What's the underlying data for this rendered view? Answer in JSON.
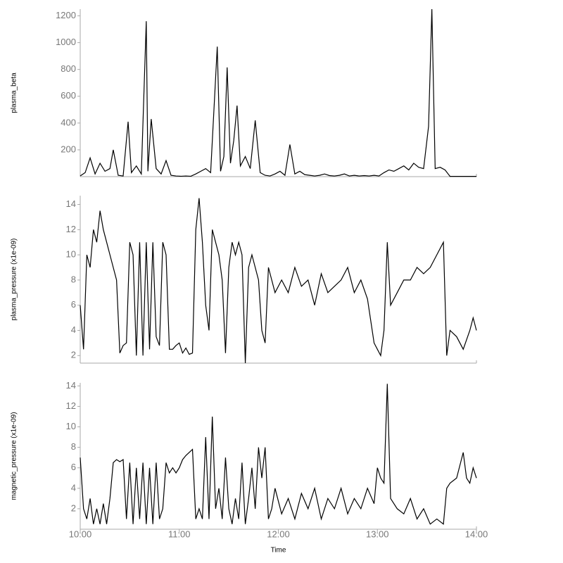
{
  "chart_data": [
    {
      "type": "line",
      "ylabel": "plasma_beta",
      "color": "#000000",
      "x": [
        "10:00",
        "10:03",
        "10:06",
        "10:09",
        "10:12",
        "10:15",
        "10:18",
        "10:20",
        "10:23",
        "10:26",
        "10:29",
        "10:31",
        "10:34",
        "10:37",
        "10:40",
        "10:41",
        "10:43",
        "10:46",
        "10:49",
        "10:52",
        "10:55",
        "10:58",
        "11:01",
        "11:04",
        "11:07",
        "11:10",
        "11:13",
        "11:16",
        "11:19",
        "11:23",
        "11:25",
        "11:27",
        "11:29",
        "11:31",
        "11:33",
        "11:35",
        "11:37",
        "11:40",
        "11:43",
        "11:46",
        "11:49",
        "11:52",
        "11:55",
        "11:58",
        "12:01",
        "12:04",
        "12:07",
        "12:10",
        "12:13",
        "12:16",
        "12:19",
        "12:22",
        "12:25",
        "12:28",
        "12:31",
        "12:34",
        "12:37",
        "12:40",
        "12:43",
        "12:46",
        "12:49",
        "12:52",
        "12:55",
        "12:58",
        "13:01",
        "13:04",
        "13:07",
        "13:10",
        "13:13",
        "13:16",
        "13:19",
        "13:22",
        "13:25",
        "13:28",
        "13:31",
        "13:33",
        "13:35",
        "13:38",
        "13:41",
        "13:44",
        "13:50",
        "13:55",
        "14:00"
      ],
      "values": [
        5,
        30,
        140,
        20,
        100,
        40,
        60,
        200,
        10,
        5,
        410,
        30,
        80,
        20,
        1160,
        40,
        430,
        60,
        20,
        120,
        10,
        5,
        3,
        5,
        3,
        20,
        40,
        60,
        30,
        970,
        40,
        150,
        815,
        100,
        270,
        530,
        80,
        150,
        60,
        420,
        30,
        10,
        5,
        20,
        40,
        10,
        240,
        20,
        40,
        15,
        10,
        5,
        10,
        20,
        8,
        5,
        10,
        20,
        5,
        10,
        5,
        8,
        5,
        10,
        5,
        30,
        50,
        40,
        60,
        80,
        50,
        100,
        70,
        60,
        375,
        1250,
        60,
        70,
        50,
        2,
        2,
        2,
        2
      ],
      "xlim": [
        "10:00",
        "14:00"
      ],
      "ylim": [
        0,
        1250
      ],
      "yticks": [
        200,
        400,
        600,
        800,
        1000,
        1200
      ]
    },
    {
      "type": "line",
      "ylabel": "plasma_pressure (x1e-09)",
      "color": "#000000",
      "x": [
        "10:00",
        "10:02",
        "10:04",
        "10:06",
        "10:08",
        "10:10",
        "10:12",
        "10:14",
        "10:16",
        "10:18",
        "10:20",
        "10:22",
        "10:24",
        "10:26",
        "10:28",
        "10:30",
        "10:32",
        "10:34",
        "10:36",
        "10:38",
        "10:40",
        "10:42",
        "10:44",
        "10:46",
        "10:48",
        "10:50",
        "10:52",
        "10:54",
        "10:56",
        "10:58",
        "11:00",
        "11:02",
        "11:04",
        "11:06",
        "11:08",
        "11:10",
        "11:12",
        "11:14",
        "11:16",
        "11:18",
        "11:20",
        "11:22",
        "11:24",
        "11:26",
        "11:28",
        "11:30",
        "11:32",
        "11:34",
        "11:36",
        "11:38",
        "11:40",
        "11:42",
        "11:44",
        "11:46",
        "11:48",
        "11:50",
        "11:52",
        "11:54",
        "11:56",
        "11:58",
        "12:02",
        "12:06",
        "12:10",
        "12:14",
        "12:18",
        "12:22",
        "12:26",
        "12:30",
        "12:34",
        "12:38",
        "12:42",
        "12:46",
        "12:50",
        "12:54",
        "12:58",
        "13:00",
        "13:02",
        "13:04",
        "13:06",
        "13:08",
        "13:12",
        "13:16",
        "13:20",
        "13:24",
        "13:28",
        "13:32",
        "13:36",
        "13:40",
        "13:42",
        "13:44",
        "13:48",
        "13:52",
        "13:56",
        "13:58",
        "14:00"
      ],
      "values": [
        6,
        2.5,
        10,
        9,
        12,
        11,
        13.5,
        12,
        11,
        10,
        9,
        8,
        2.2,
        2.8,
        3,
        11,
        10,
        2,
        11,
        2,
        11,
        2.5,
        11,
        3.5,
        2.8,
        11,
        10,
        2.5,
        2.5,
        2.8,
        3,
        2.2,
        2.6,
        2.1,
        2.2,
        12,
        14.5,
        11,
        6,
        4,
        12,
        11,
        10,
        8,
        2.2,
        9,
        11,
        10,
        11,
        10,
        1.4,
        9,
        10,
        9,
        8,
        4,
        3,
        9,
        8,
        7,
        8,
        7,
        9,
        7.5,
        8,
        6,
        8.5,
        7,
        7.5,
        8,
        9,
        7,
        8,
        6.5,
        3,
        2.5,
        2,
        4,
        11,
        6,
        7,
        8,
        8,
        9,
        8.5,
        9,
        10,
        11,
        2,
        4,
        3.5,
        2.5,
        4,
        5,
        4
      ],
      "xlim": [
        "10:00",
        "14:00"
      ],
      "ylim": [
        1.4,
        14.7
      ],
      "yticks": [
        2,
        4,
        6,
        8,
        10,
        12,
        14
      ]
    },
    {
      "type": "line",
      "ylabel": "magnetic_pressure (x1e-09)",
      "xlabel": "Time",
      "color": "#000000",
      "x": [
        "10:00",
        "10:02",
        "10:04",
        "10:06",
        "10:08",
        "10:10",
        "10:12",
        "10:14",
        "10:16",
        "10:18",
        "10:20",
        "10:22",
        "10:24",
        "10:26",
        "10:28",
        "10:30",
        "10:32",
        "10:34",
        "10:36",
        "10:38",
        "10:40",
        "10:42",
        "10:44",
        "10:46",
        "10:48",
        "10:50",
        "10:52",
        "10:54",
        "10:56",
        "10:58",
        "11:00",
        "11:02",
        "11:04",
        "11:06",
        "11:08",
        "11:10",
        "11:12",
        "11:14",
        "11:16",
        "11:18",
        "11:20",
        "11:22",
        "11:24",
        "11:26",
        "11:28",
        "11:30",
        "11:32",
        "11:34",
        "11:36",
        "11:38",
        "11:40",
        "11:42",
        "11:44",
        "11:46",
        "11:48",
        "11:50",
        "11:52",
        "11:54",
        "11:56",
        "11:58",
        "12:02",
        "12:06",
        "12:10",
        "12:14",
        "12:18",
        "12:22",
        "12:26",
        "12:30",
        "12:34",
        "12:38",
        "12:42",
        "12:46",
        "12:50",
        "12:54",
        "12:58",
        "13:00",
        "13:02",
        "13:04",
        "13:06",
        "13:08",
        "13:12",
        "13:16",
        "13:20",
        "13:24",
        "13:28",
        "13:32",
        "13:36",
        "13:40",
        "13:42",
        "13:44",
        "13:48",
        "13:52",
        "13:54",
        "13:56",
        "13:58",
        "14:00"
      ],
      "values": [
        7,
        2,
        1,
        3,
        0.5,
        2,
        0.5,
        2.5,
        0.5,
        3,
        6.5,
        6.8,
        6.6,
        6.8,
        1,
        6.5,
        0.5,
        6,
        1,
        6.5,
        0.5,
        6,
        0.5,
        6.5,
        1,
        2,
        6.5,
        5.5,
        6,
        5.5,
        6,
        6.8,
        7.2,
        7.5,
        7.8,
        1,
        2,
        1,
        9,
        1,
        11,
        2,
        4,
        1,
        7,
        2,
        0.5,
        3,
        1,
        6.5,
        0.5,
        3,
        6,
        2,
        8,
        5,
        8,
        1,
        2,
        4,
        1.5,
        3,
        1,
        3.5,
        2,
        4,
        1,
        3,
        2,
        4,
        1.5,
        3,
        2,
        4,
        2.5,
        6,
        5,
        4.5,
        14.2,
        3,
        2,
        1.5,
        3,
        1,
        2,
        0.5,
        1,
        0.5,
        4,
        4.5,
        5,
        7.5,
        5,
        4.5,
        6,
        5
      ],
      "xlim": [
        "10:00",
        "14:00"
      ],
      "ylim": [
        0,
        14.3
      ],
      "yticks": [
        2,
        4,
        6,
        8,
        10,
        12,
        14
      ],
      "xticks": [
        "10:00",
        "11:00",
        "12:00",
        "13:00",
        "14:00"
      ]
    }
  ]
}
